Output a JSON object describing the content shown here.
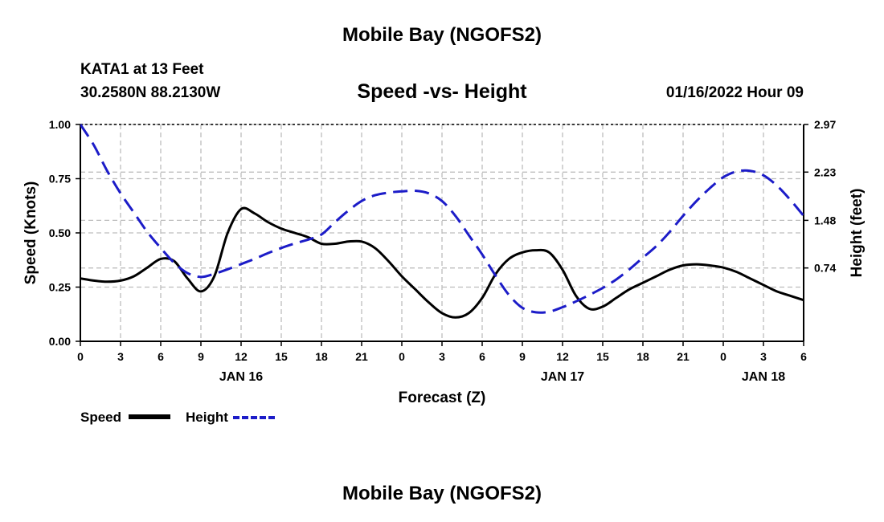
{
  "header": {
    "title": "Mobile Bay (NGOFS2)",
    "station": "KATA1 at 13 Feet",
    "coordinates": "30.2580N  88.2130W",
    "subtitle": "Speed -vs- Height",
    "datetime": "01/16/2022 Hour 09"
  },
  "footer": {
    "title": "Mobile Bay (NGOFS2)"
  },
  "legend": {
    "speed_label": "Speed",
    "height_label": "Height"
  },
  "colors": {
    "speed": "#000000",
    "height": "#1c1cc8",
    "grid": "#bdbdbd"
  },
  "chart_data": {
    "type": "line",
    "xlabel": "Forecast (Z)",
    "ylabel": "Speed (Knots)",
    "y2label": "Height (feet)",
    "xlim": [
      0,
      54
    ],
    "ylim": [
      0,
      1.0
    ],
    "y2lim": [
      -0.4,
      2.97
    ],
    "x_ticks": [
      0,
      3,
      6,
      9,
      12,
      15,
      18,
      21,
      24,
      27,
      30,
      33,
      36,
      39,
      42,
      45,
      48,
      51,
      54
    ],
    "x_tick_labels": [
      "0",
      "3",
      "6",
      "9",
      "12",
      "15",
      "18",
      "21",
      "0",
      "3",
      "6",
      "9",
      "12",
      "15",
      "18",
      "21",
      "0",
      "3",
      "6"
    ],
    "date_labels": [
      {
        "x": 12,
        "label": "JAN 16"
      },
      {
        "x": 36,
        "label": "JAN 17"
      },
      {
        "x": 51,
        "label": "JAN 18"
      }
    ],
    "y_ticks": [
      0,
      0.25,
      0.5,
      0.75,
      1.0
    ],
    "y_tick_labels": [
      "0.00",
      "0.25",
      "0.50",
      "0.75",
      "1.00"
    ],
    "y2_ticks": [
      0.74,
      1.48,
      2.23,
      2.97
    ],
    "y2_tick_labels": [
      "0.74",
      "1.48",
      "2.23",
      "2.97"
    ],
    "grid": true,
    "series": [
      {
        "name": "Speed",
        "axis": "left",
        "style": "solid",
        "x": [
          0,
          1,
          2,
          3,
          4,
          5,
          6,
          7,
          8,
          9,
          10,
          11,
          12,
          13,
          14,
          15,
          16,
          17,
          18,
          19,
          20,
          21,
          22,
          23,
          24,
          25,
          26,
          27,
          28,
          29,
          30,
          31,
          32,
          33,
          34,
          35,
          36,
          37,
          38,
          39,
          40,
          41,
          42,
          43,
          44,
          45,
          46,
          47,
          48,
          49,
          50,
          51,
          52,
          53,
          54
        ],
        "values": [
          0.29,
          0.28,
          0.275,
          0.28,
          0.3,
          0.34,
          0.38,
          0.37,
          0.29,
          0.23,
          0.3,
          0.5,
          0.61,
          0.59,
          0.55,
          0.52,
          0.5,
          0.48,
          0.45,
          0.45,
          0.46,
          0.46,
          0.43,
          0.37,
          0.3,
          0.24,
          0.18,
          0.13,
          0.11,
          0.13,
          0.2,
          0.31,
          0.38,
          0.41,
          0.42,
          0.41,
          0.33,
          0.21,
          0.15,
          0.16,
          0.2,
          0.24,
          0.27,
          0.3,
          0.33,
          0.35,
          0.355,
          0.35,
          0.34,
          0.32,
          0.29,
          0.26,
          0.23,
          0.21,
          0.19
        ]
      },
      {
        "name": "Height",
        "axis": "right",
        "style": "dashed",
        "x": [
          0,
          1,
          2,
          3,
          4,
          5,
          6,
          7,
          8,
          9,
          10,
          11,
          12,
          13,
          14,
          15,
          16,
          17,
          18,
          19,
          20,
          21,
          22,
          23,
          24,
          25,
          26,
          27,
          28,
          29,
          30,
          31,
          32,
          33,
          34,
          35,
          36,
          37,
          38,
          39,
          40,
          41,
          42,
          43,
          44,
          45,
          46,
          47,
          48,
          49,
          50,
          51,
          52,
          53,
          54
        ],
        "values": [
          2.97,
          2.65,
          2.25,
          1.9,
          1.6,
          1.3,
          1.05,
          0.82,
          0.66,
          0.6,
          0.65,
          0.72,
          0.8,
          0.88,
          0.97,
          1.05,
          1.12,
          1.18,
          1.26,
          1.45,
          1.63,
          1.78,
          1.87,
          1.91,
          1.93,
          1.94,
          1.9,
          1.78,
          1.55,
          1.25,
          0.95,
          0.62,
          0.32,
          0.12,
          0.05,
          0.06,
          0.13,
          0.22,
          0.32,
          0.43,
          0.56,
          0.72,
          0.9,
          1.08,
          1.3,
          1.55,
          1.78,
          1.98,
          2.15,
          2.24,
          2.25,
          2.18,
          2.02,
          1.8,
          1.55
        ]
      }
    ]
  }
}
